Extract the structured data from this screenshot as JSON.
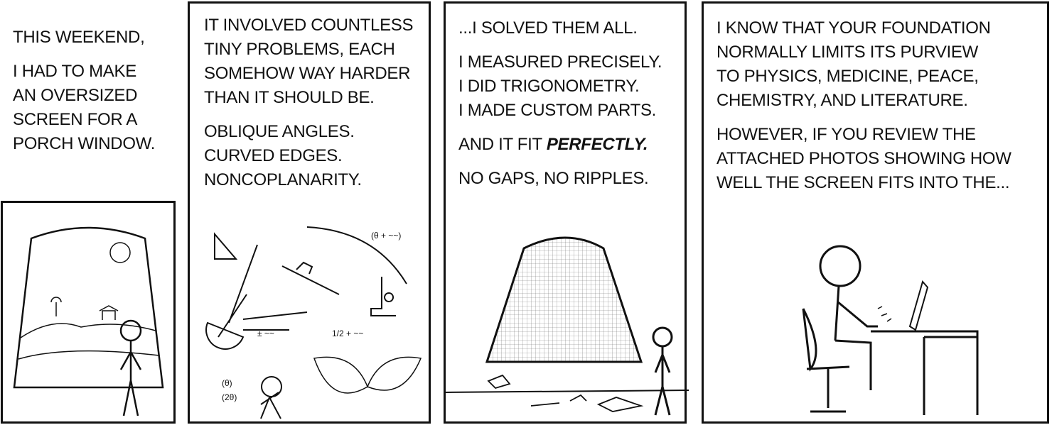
{
  "panels": [
    {
      "lines_a": [
        "THIS WEEKEND,"
      ],
      "lines_b": [
        "I HAD TO MAKE",
        "AN OVERSIZED",
        "SCREEN FOR A",
        "PORCH WINDOW."
      ]
    },
    {
      "lines_a": [
        "IT INVOLVED COUNTLESS",
        "TINY PROBLEMS, EACH",
        "SOMEHOW WAY HARDER",
        "THAN IT SHOULD BE."
      ],
      "lines_b": [
        "OBLIQUE ANGLES.",
        "CURVED EDGES.",
        "NONCOPLANARITY."
      ],
      "scribbles": [
        "(θ + ~~)",
        "± ~~",
        "1/2 + ~~",
        "(θ)",
        "(2θ)"
      ]
    },
    {
      "line_a": "...I SOLVED THEM ALL.",
      "lines_b": [
        "I MEASURED PRECISELY.",
        "I DID TRIGONOMETRY.",
        "I MADE CUSTOM PARTS."
      ],
      "fit_prefix": "AND IT FIT ",
      "fit_emph": "PERFECTLY.",
      "line_d": "NO GAPS, NO RIPPLES."
    },
    {
      "lines_a": [
        "I KNOW THAT YOUR FOUNDATION",
        "NORMALLY LIMITS ITS PURVIEW",
        "TO PHYSICS, MEDICINE, PEACE,",
        "CHEMISTRY, AND LITERATURE."
      ],
      "lines_b": [
        "HOWEVER, IF YOU REVIEW THE",
        "ATTACHED PHOTOS SHOWING HOW",
        "WELL THE SCREEN FITS INTO THE..."
      ]
    }
  ]
}
